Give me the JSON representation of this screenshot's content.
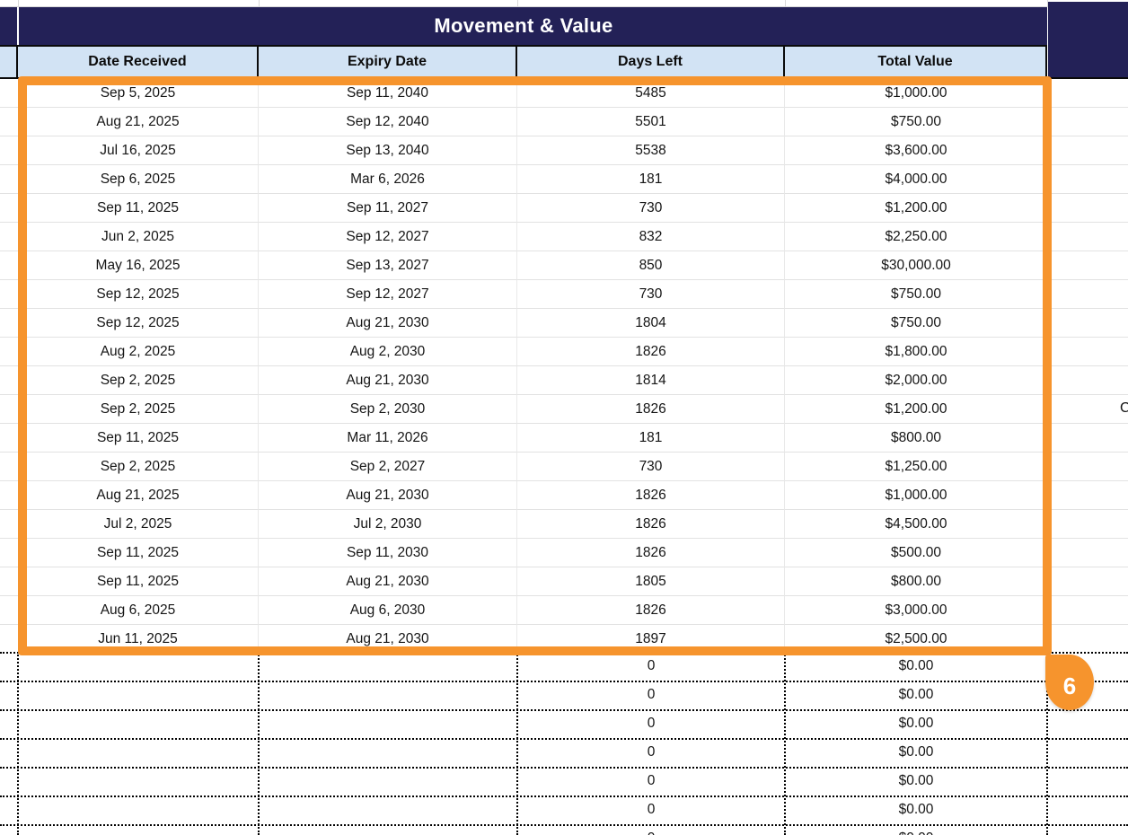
{
  "title": "Movement & Value",
  "columns": [
    "Date Received",
    "Expiry Date",
    "Days Left",
    "Total Value"
  ],
  "rows": [
    {
      "date_received": "Sep 5, 2025",
      "expiry_date": "Sep 11, 2040",
      "days_left": "5485",
      "total_value": "$1,000.00"
    },
    {
      "date_received": "Aug 21, 2025",
      "expiry_date": "Sep 12, 2040",
      "days_left": "5501",
      "total_value": "$750.00"
    },
    {
      "date_received": "Jul 16, 2025",
      "expiry_date": "Sep 13, 2040",
      "days_left": "5538",
      "total_value": "$3,600.00"
    },
    {
      "date_received": "Sep 6, 2025",
      "expiry_date": "Mar 6, 2026",
      "days_left": "181",
      "total_value": "$4,000.00"
    },
    {
      "date_received": "Sep 11, 2025",
      "expiry_date": "Sep 11, 2027",
      "days_left": "730",
      "total_value": "$1,200.00"
    },
    {
      "date_received": "Jun 2, 2025",
      "expiry_date": "Sep 12, 2027",
      "days_left": "832",
      "total_value": "$2,250.00"
    },
    {
      "date_received": "May 16, 2025",
      "expiry_date": "Sep 13, 2027",
      "days_left": "850",
      "total_value": "$30,000.00"
    },
    {
      "date_received": "Sep 12, 2025",
      "expiry_date": "Sep 12, 2027",
      "days_left": "730",
      "total_value": "$750.00"
    },
    {
      "date_received": "Sep 12, 2025",
      "expiry_date": "Aug 21, 2030",
      "days_left": "1804",
      "total_value": "$750.00"
    },
    {
      "date_received": "Aug 2, 2025",
      "expiry_date": "Aug 2, 2030",
      "days_left": "1826",
      "total_value": "$1,800.00"
    },
    {
      "date_received": "Sep 2, 2025",
      "expiry_date": "Aug 21, 2030",
      "days_left": "1814",
      "total_value": "$2,000.00"
    },
    {
      "date_received": "Sep 2, 2025",
      "expiry_date": "Sep 2, 2030",
      "days_left": "1826",
      "total_value": "$1,200.00"
    },
    {
      "date_received": "Sep 11, 2025",
      "expiry_date": "Mar 11, 2026",
      "days_left": "181",
      "total_value": "$800.00"
    },
    {
      "date_received": "Sep 2, 2025",
      "expiry_date": "Sep 2, 2027",
      "days_left": "730",
      "total_value": "$1,250.00"
    },
    {
      "date_received": "Aug 21, 2025",
      "expiry_date": "Aug 21, 2030",
      "days_left": "1826",
      "total_value": "$1,000.00"
    },
    {
      "date_received": "Jul 2, 2025",
      "expiry_date": "Jul 2, 2030",
      "days_left": "1826",
      "total_value": "$4,500.00"
    },
    {
      "date_received": "Sep 11, 2025",
      "expiry_date": "Sep 11, 2030",
      "days_left": "1826",
      "total_value": "$500.00"
    },
    {
      "date_received": "Sep 11, 2025",
      "expiry_date": "Aug 21, 2030",
      "days_left": "1805",
      "total_value": "$800.00"
    },
    {
      "date_received": "Aug 6, 2025",
      "expiry_date": "Aug 6, 2030",
      "days_left": "1826",
      "total_value": "$3,000.00"
    },
    {
      "date_received": "Jun 11, 2025",
      "expiry_date": "Aug 21, 2030",
      "days_left": "1897",
      "total_value": "$2,500.00"
    }
  ],
  "empty_rows": {
    "count": 7,
    "days_left": "0",
    "total_value": "$0.00"
  },
  "selection": {
    "badge_label": "6"
  },
  "clipped_text_right": "C",
  "colors": {
    "navy": "#232157",
    "header_blue": "#d2e3f4",
    "selection_orange": "#f6942d",
    "gridline": "#e2e2e2",
    "header_border": "#0a0a0a"
  }
}
